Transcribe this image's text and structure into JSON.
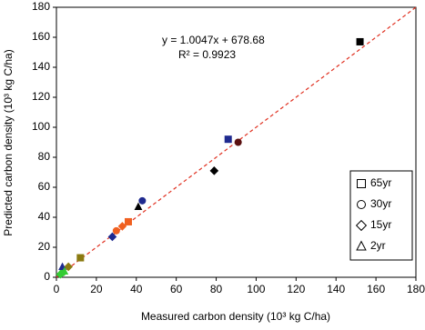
{
  "chart_data": {
    "type": "scatter",
    "xlabel": "Measured carbon density (10³ kg C/ha)",
    "ylabel": "Predicted carbon density (10³ kg C/ha)",
    "annotations": [
      "y = 1.0047x + 678.68",
      "R² = 0.9923"
    ],
    "xlim": [
      0,
      180
    ],
    "ylim": [
      0,
      180
    ],
    "xticks": [
      0,
      20,
      40,
      60,
      80,
      100,
      120,
      140,
      160,
      180
    ],
    "yticks": [
      0,
      20,
      40,
      60,
      80,
      100,
      120,
      140,
      160,
      180
    ],
    "trendline": {
      "x": [
        0,
        180
      ],
      "y": [
        0,
        180
      ],
      "color": "#e03020"
    },
    "legend": "right",
    "series": [
      {
        "name": "65yr",
        "shape": "square",
        "x": [
          152,
          86,
          36,
          12
        ],
        "values": [
          157,
          92,
          37,
          13
        ],
        "colors": [
          "#000000",
          "#1f2a8f",
          "#f06020",
          "#8a7a10"
        ]
      },
      {
        "name": "30yr",
        "shape": "circle",
        "x": [
          91,
          43,
          30,
          3
        ],
        "values": [
          90,
          51,
          31,
          3
        ],
        "colors": [
          "#5a1010",
          "#1f2a8f",
          "#f06020",
          "#33cc33"
        ]
      },
      {
        "name": "15yr",
        "shape": "diamond",
        "x": [
          79,
          28,
          33,
          6,
          2
        ],
        "values": [
          71,
          27,
          34,
          7,
          2
        ],
        "colors": [
          "#000000",
          "#1f2a8f",
          "#f06020",
          "#8a7a10",
          "#33cc33"
        ]
      },
      {
        "name": "2yr",
        "shape": "triangle",
        "x": [
          41,
          3,
          4
        ],
        "values": [
          47,
          7,
          4
        ],
        "colors": [
          "#000000",
          "#1f2a8f",
          "#33cc33"
        ]
      }
    ]
  }
}
